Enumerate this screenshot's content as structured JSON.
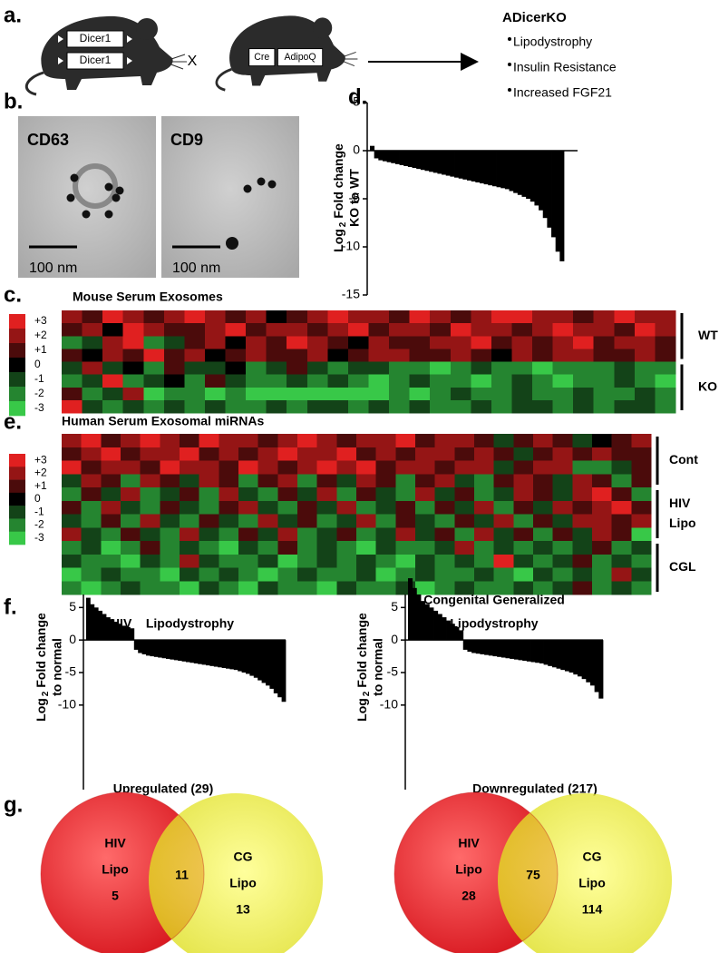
{
  "panel_a": {
    "label": "a.",
    "mouse_1": [
      "Dicer1",
      "Dicer1"
    ],
    "cross": "X",
    "mouse_2": [
      "Cre",
      "AdipoQ"
    ],
    "result": {
      "title": "ADicerKO",
      "bullets": [
        "Lipodystrophy",
        "Insulin Resistance",
        "Increased FGF21"
      ]
    }
  },
  "panel_b": {
    "label": "b.",
    "images": [
      {
        "label": "CD63",
        "scale": "100 nm"
      },
      {
        "label": "CD9",
        "scale": "100 nm"
      }
    ]
  },
  "chart_data": [
    {
      "type": "bar",
      "panel_label": "d.",
      "color": "#000000",
      "y_label": {
        "base": "Log",
        "subscript": "2",
        "text": "Fold change",
        "line2": "KO to WT"
      },
      "ylim": [
        -15,
        5
      ],
      "yticks": [
        5,
        0,
        -5,
        -10,
        -15
      ],
      "values": [
        0.5,
        -0.8,
        -1.0,
        -1.1,
        -1.2,
        -1.3,
        -1.4,
        -1.5,
        -1.6,
        -1.7,
        -1.8,
        -1.9,
        -2.0,
        -2.1,
        -2.2,
        -2.3,
        -2.4,
        -2.5,
        -2.6,
        -2.7,
        -2.8,
        -2.9,
        -3.0,
        -3.1,
        -3.2,
        -3.3,
        -3.4,
        -3.5,
        -3.6,
        -3.7,
        -3.8,
        -3.9,
        -4.0,
        -4.2,
        -4.4,
        -4.6,
        -4.8,
        -5.0,
        -5.3,
        -5.7,
        -6.2,
        -7.0,
        -8.0,
        -9.0,
        -10.5,
        -11.5
      ]
    },
    {
      "type": "heatmap",
      "panel_label": "c.",
      "title": "Mouse Serum Exosomes",
      "colors": {
        "high": "#e02020",
        "mid": "#000000",
        "low": "#38c848"
      },
      "colorbar_ticks": [
        {
          "value": 3,
          "label": "+3"
        },
        {
          "value": 2,
          "label": "+2"
        },
        {
          "value": 1,
          "label": "+1"
        },
        0,
        -1,
        -2,
        -3
      ],
      "groups": [
        {
          "name": "WT",
          "values": [
            [
              2,
              1,
              3,
              2,
              1,
              2,
              3,
              2,
              1,
              2,
              0,
              1,
              2,
              3,
              2,
              2,
              1,
              3,
              2,
              1,
              2,
              3,
              3,
              2,
              2,
              1,
              2,
              3,
              2,
              2
            ],
            [
              1,
              2,
              0,
              3,
              2,
              1,
              1,
              2,
              3,
              1,
              2,
              2,
              1,
              2,
              3,
              1,
              2,
              2,
              1,
              3,
              2,
              2,
              1,
              2,
              3,
              2,
              2,
              1,
              3,
              2
            ],
            [
              -2,
              -1,
              2,
              3,
              -2,
              -1,
              1,
              2,
              0,
              2,
              1,
              3,
              2,
              1,
              0,
              2,
              1,
              1,
              2,
              2,
              3,
              1,
              2,
              1,
              2,
              3,
              1,
              2,
              2,
              1
            ],
            [
              1,
              0,
              2,
              1,
              3,
              1,
              2,
              0,
              1,
              2,
              1,
              1,
              2,
              0,
              1,
              2,
              2,
              1,
              1,
              2,
              1,
              0,
              2,
              1,
              2,
              2,
              1,
              1,
              2,
              1
            ]
          ]
        },
        {
          "name": "KO",
          "values": [
            [
              -1,
              2,
              -1,
              0,
              -2,
              1,
              -1,
              -1,
              0,
              -2,
              -1,
              1,
              -1,
              -2,
              -1,
              -1,
              -2,
              -2,
              -3,
              -2,
              -1,
              -2,
              -2,
              -3,
              -2,
              -2,
              -2,
              -1,
              -2,
              -2
            ],
            [
              -2,
              -1,
              3,
              -2,
              -1,
              0,
              -2,
              1,
              -1,
              -2,
              -2,
              -1,
              -2,
              -1,
              -2,
              -3,
              -2,
              -1,
              -2,
              -2,
              -3,
              -2,
              -1,
              -2,
              -3,
              -2,
              -2,
              -1,
              -2,
              -3
            ],
            [
              1,
              -2,
              -1,
              2,
              -3,
              -2,
              -2,
              -3,
              -2,
              -3,
              -3,
              -3,
              -3,
              -3,
              -3,
              -3,
              -2,
              -3,
              -2,
              -1,
              -2,
              -2,
              -1,
              -2,
              -2,
              -1,
              -2,
              -2,
              -1,
              -2
            ],
            [
              3,
              -1,
              -2,
              -1,
              -2,
              -1,
              -2,
              -1,
              -2,
              -2,
              -1,
              -2,
              -1,
              -1,
              -2,
              -1,
              -2,
              -1,
              -2,
              -2,
              -1,
              -2,
              -1,
              -1,
              -2,
              -1,
              -2,
              -1,
              -1,
              -2
            ]
          ]
        }
      ]
    },
    {
      "type": "heatmap",
      "panel_label": "e.",
      "title": "Human Serum Exosomal miRNAs",
      "colors": {
        "high": "#e02020",
        "mid": "#000000",
        "low": "#38c848"
      },
      "colorbar_ticks": [
        {
          "value": 3,
          "label": "+3"
        },
        {
          "value": 2,
          "label": "+2"
        },
        {
          "value": 1,
          "label": "+1"
        },
        0,
        -1,
        -2,
        -3
      ],
      "groups": [
        {
          "name": "Cont",
          "values": [
            [
              2,
              3,
              1,
              2,
              3,
              2,
              1,
              3,
              2,
              2,
              1,
              2,
              3,
              2,
              1,
              2,
              2,
              3,
              1,
              2,
              2,
              1,
              -1,
              1,
              2,
              1,
              -1,
              0,
              1,
              2
            ],
            [
              1,
              2,
              3,
              1,
              2,
              2,
              3,
              1,
              2,
              1,
              2,
              3,
              2,
              2,
              3,
              1,
              2,
              1,
              2,
              2,
              1,
              2,
              1,
              -1,
              1,
              2,
              1,
              2,
              1,
              1
            ],
            [
              3,
              1,
              2,
              2,
              1,
              3,
              2,
              2,
              1,
              3,
              2,
              1,
              2,
              3,
              2,
              3,
              1,
              2,
              2,
              1,
              2,
              2,
              -1,
              1,
              2,
              2,
              -2,
              -2,
              -1,
              1
            ],
            [
              -1,
              2,
              1,
              -2,
              2,
              1,
              -1,
              2,
              1,
              -2,
              1,
              2,
              -2,
              1,
              -1,
              2,
              1,
              -2,
              1,
              2,
              -1,
              -2,
              1,
              2,
              1,
              -1,
              2,
              1,
              -2,
              1
            ]
          ]
        },
        {
          "name": [
            "HIV",
            "Lipo"
          ],
          "values": [
            [
              -2,
              1,
              -1,
              2,
              -2,
              -1,
              1,
              -2,
              2,
              -1,
              -2,
              1,
              -1,
              2,
              -2,
              1,
              -1,
              -2,
              2,
              -1,
              1,
              -2,
              -1,
              2,
              1,
              -1,
              2,
              3,
              1,
              -2
            ],
            [
              1,
              -2,
              2,
              -1,
              -2,
              1,
              -1,
              -2,
              1,
              2,
              -1,
              -2,
              1,
              -1,
              2,
              -2,
              -1,
              1,
              -2,
              1,
              -1,
              2,
              -2,
              1,
              -1,
              2,
              1,
              2,
              3,
              1
            ],
            [
              -1,
              -2,
              1,
              -2,
              2,
              -1,
              -2,
              1,
              -1,
              -2,
              2,
              -1,
              1,
              -2,
              -1,
              2,
              -2,
              1,
              -1,
              -2,
              1,
              -1,
              2,
              -2,
              1,
              -1,
              2,
              2,
              1,
              2
            ],
            [
              2,
              -1,
              -2,
              1,
              -1,
              -2,
              2,
              -1,
              -2,
              1,
              -1,
              2,
              -2,
              -1,
              1,
              -2,
              -1,
              2,
              -1,
              1,
              -2,
              2,
              -1,
              1,
              -2,
              1,
              -1,
              2,
              1,
              -3
            ]
          ]
        },
        {
          "name": "CGL",
          "values": [
            [
              -2,
              -1,
              -3,
              -2,
              1,
              -2,
              -1,
              -2,
              -3,
              -1,
              -2,
              1,
              -2,
              -1,
              -2,
              -3,
              -1,
              -2,
              -2,
              -1,
              2,
              -2,
              -1,
              -2,
              -1,
              -2,
              -1,
              1,
              -2,
              -1
            ],
            [
              -1,
              -2,
              -2,
              -3,
              -1,
              -2,
              2,
              -1,
              -2,
              -2,
              -1,
              -3,
              -2,
              -1,
              -2,
              -1,
              -2,
              -3,
              -1,
              -2,
              -1,
              -2,
              3,
              -1,
              -2,
              -1,
              1,
              -2,
              -1,
              -2
            ],
            [
              -3,
              -2,
              -1,
              -2,
              -2,
              -3,
              -1,
              -2,
              -1,
              -2,
              -3,
              -2,
              -1,
              -2,
              -2,
              -1,
              -3,
              -2,
              -1,
              -2,
              -2,
              -1,
              -2,
              -3,
              -1,
              -2,
              -1,
              -2,
              2,
              -1
            ],
            [
              -2,
              -3,
              -2,
              -1,
              -2,
              -2,
              -3,
              -1,
              -2,
              -3,
              -1,
              -2,
              -2,
              -3,
              -1,
              -2,
              -2,
              -1,
              -3,
              -2,
              -1,
              -2,
              -2,
              -1,
              -2,
              -1,
              1,
              -2,
              -1,
              -2
            ]
          ]
        }
      ]
    },
    {
      "type": "bar",
      "panel_label": "f.",
      "title": [
        "HIV    Lipodystrophy"
      ],
      "color": "#000000",
      "y_label": {
        "base": "Log",
        "subscript": "2",
        "text": "Fold change",
        "line2": "to normal"
      },
      "ylim": [
        -23,
        7
      ],
      "yticks": [
        5,
        0,
        -5,
        -10
      ],
      "values": [
        6.5,
        5.5,
        5,
        4.5,
        4,
        3.5,
        3.2,
        2.8,
        2.5,
        2.2,
        2,
        1.8,
        -1.5,
        -2,
        -2.2,
        -2.4,
        -2.5,
        -2.6,
        -2.7,
        -2.8,
        -2.9,
        -3,
        -3.1,
        -3.2,
        -3.3,
        -3.4,
        -3.5,
        -3.6,
        -3.7,
        -3.8,
        -3.9,
        -4,
        -4.1,
        -4.2,
        -4.3,
        -4.4,
        -4.5,
        -4.6,
        -4.8,
        -5,
        -5.2,
        -5.5,
        -5.8,
        -6.2,
        -6.6,
        -7,
        -7.5,
        -8.2,
        -8.8,
        -9.5
      ]
    },
    {
      "type": "bar",
      "title": [
        "Congenital Generalized",
        "Lipodystrophy"
      ],
      "color": "#000000",
      "y_label": {
        "base": "Log",
        "subscript": "2",
        "text": "Fold change",
        "line2": "to normal"
      },
      "ylim": [
        -23,
        7
      ],
      "yticks": [
        5,
        0,
        -5,
        -10
      ],
      "values": [
        9.5,
        8,
        7,
        6,
        5.5,
        5,
        4.5,
        4,
        3.5,
        3,
        2.5,
        2,
        1.5,
        -1.5,
        -1.8,
        -2,
        -2.1,
        -2.2,
        -2.3,
        -2.4,
        -2.5,
        -2.6,
        -2.7,
        -2.8,
        -2.9,
        -3,
        -3.1,
        -3.2,
        -3.3,
        -3.4,
        -3.5,
        -3.6,
        -3.8,
        -4,
        -4.2,
        -4.4,
        -4.6,
        -4.8,
        -5,
        -5.3,
        -5.6,
        -6,
        -6.5,
        -7,
        -8,
        -9
      ]
    }
  ],
  "panel_g": {
    "label": "g.",
    "diagrams": [
      {
        "title": "Upregulated (29)",
        "left": {
          "name": [
            "HIV",
            "Lipo"
          ],
          "count": 5
        },
        "overlap": 11,
        "right": {
          "name": [
            "CG",
            "Lipo"
          ],
          "count": 13
        }
      },
      {
        "title": "Downregulated (217)",
        "left": {
          "name": [
            "HIV",
            "Lipo"
          ],
          "count": 28
        },
        "overlap": 75,
        "right": {
          "name": [
            "CG",
            "Lipo"
          ],
          "count": 114
        }
      }
    ]
  }
}
